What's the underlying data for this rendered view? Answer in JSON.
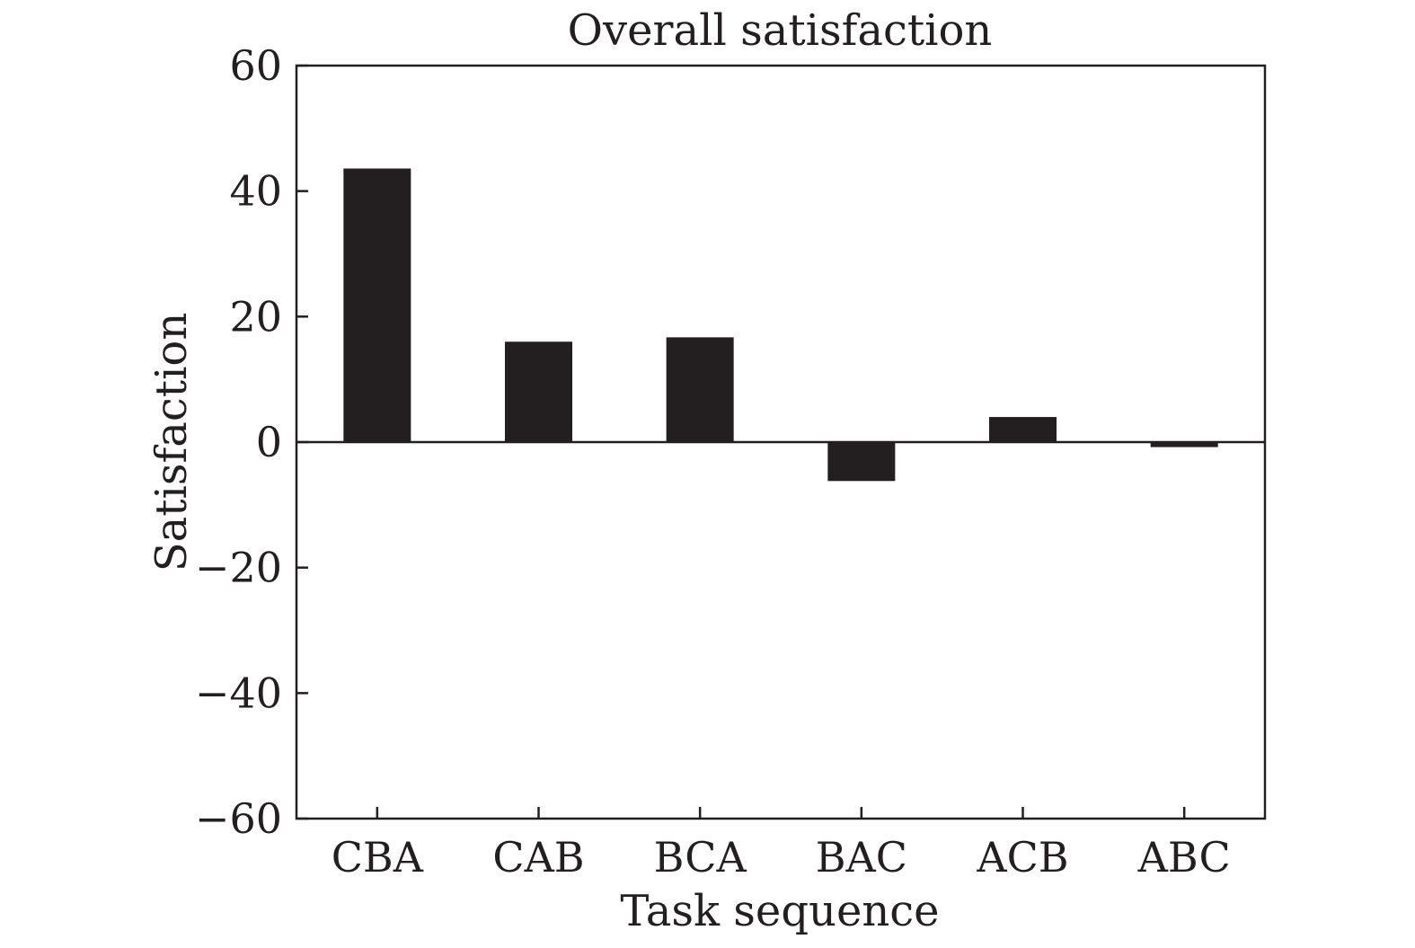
{
  "chart_data": {
    "type": "bar",
    "title": "Overall satisfaction",
    "xlabel": "Task sequence",
    "ylabel": "Satisfaction",
    "categories": [
      "CBA",
      "CAB",
      "BCA",
      "BAC",
      "ACB",
      "ABC"
    ],
    "values": [
      43.6,
      16.0,
      16.7,
      -6.2,
      4.0,
      -0.8
    ],
    "ylim": [
      -60,
      60
    ],
    "yticks": [
      60,
      40,
      20,
      0,
      -20,
      -40,
      -60
    ],
    "ytick_labels": [
      "60",
      "40",
      "20",
      "0",
      "−20",
      "−40",
      "−60"
    ],
    "grid": false,
    "zero_line": true,
    "bar_color": "#231f20",
    "axis_color": "#231f20"
  }
}
